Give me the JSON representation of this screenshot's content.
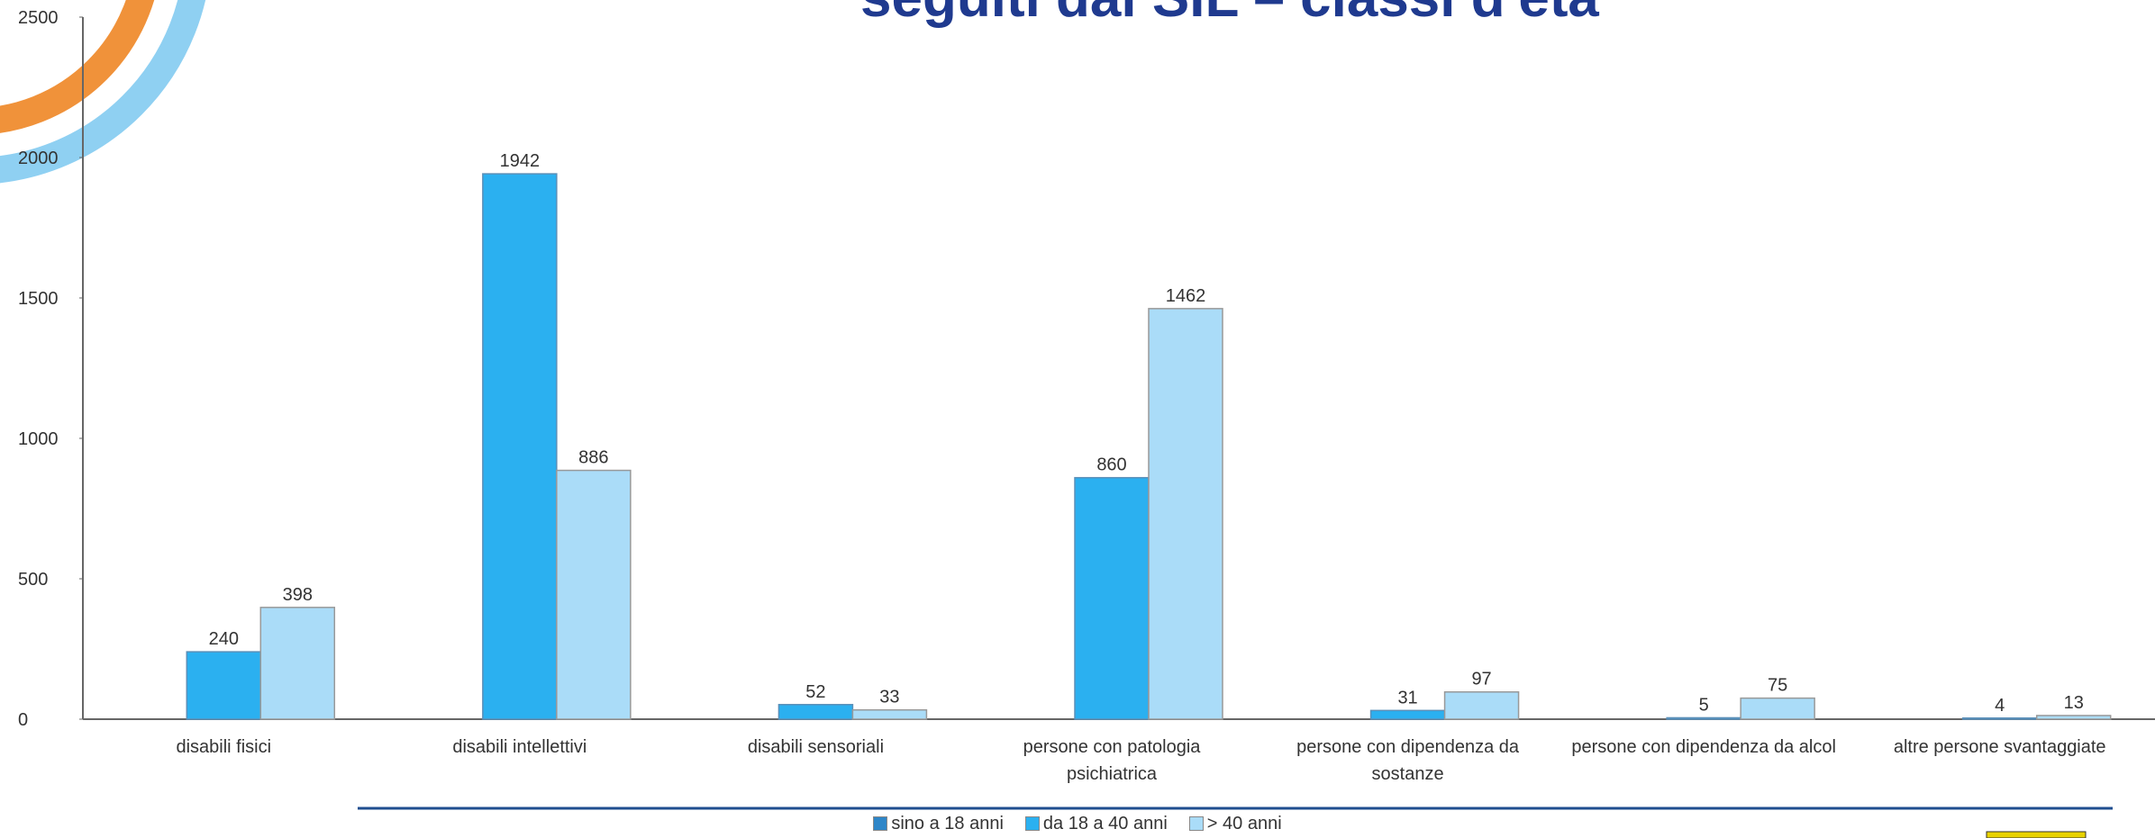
{
  "chart_data": {
    "type": "bar",
    "title": "seguiti dal SIL – classi d'età",
    "categories": [
      "disabili fisici",
      "disabili intellettivi",
      "disabili sensoriali",
      "persone con patologia psichiatrica",
      "persone con dipendenza da sostanze",
      "persone con dipendenza da alcol",
      "altre persone svantaggiate"
    ],
    "series": [
      {
        "name": "sino a 18 anni",
        "color": "#2e86c8",
        "values": [
          0,
          0,
          0,
          0,
          0,
          0,
          0
        ]
      },
      {
        "name": "da 18 a 40 anni",
        "color": "#2bb0f0",
        "values": [
          240,
          1942,
          52,
          860,
          31,
          5,
          4
        ]
      },
      {
        "name": "> 40 anni",
        "color": "#aadcf8",
        "values": [
          398,
          886,
          33,
          1462,
          97,
          75,
          13
        ]
      }
    ],
    "data_labels_series": [
      1,
      2
    ],
    "ylim": [
      0,
      2500
    ],
    "yticks": [
      0,
      500,
      1000,
      1500,
      2000,
      2500
    ],
    "grid": false
  }
}
